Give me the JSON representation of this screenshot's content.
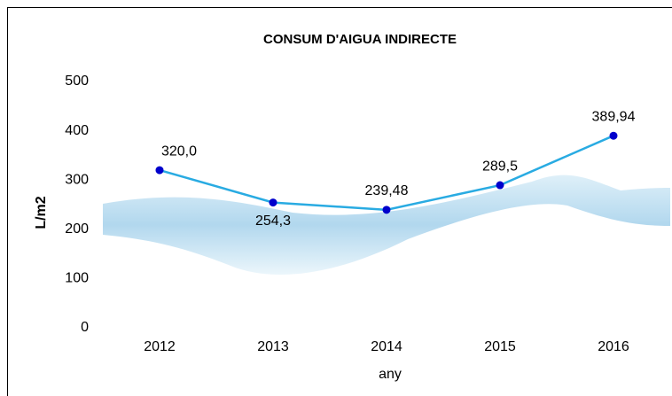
{
  "chart_data": {
    "type": "line",
    "title": "CONSUM D'AIGUA INDIRECTE",
    "x_label": "any",
    "y_label": "L/m2",
    "categories": [
      "2012",
      "2013",
      "2014",
      "2015",
      "2016"
    ],
    "values": [
      320.0,
      254.3,
      239.48,
      289.5,
      389.94
    ],
    "value_labels": [
      "320,0",
      "254,3",
      "239,48",
      "289,5",
      "389,94"
    ],
    "line_color": "#29abe2",
    "marker_color": "#0000cc",
    "ylim": [
      0,
      500
    ],
    "yticks": [
      0,
      100,
      200,
      300,
      400,
      500
    ],
    "grid": false
  }
}
